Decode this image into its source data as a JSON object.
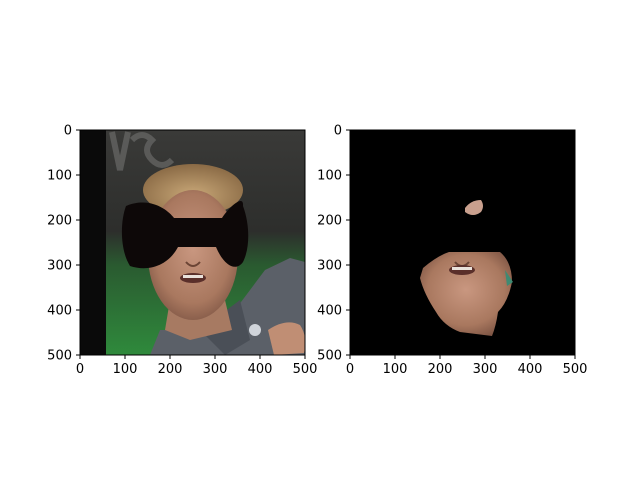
{
  "chart_data": [
    {
      "type": "image",
      "title": "",
      "xlabel": "",
      "ylabel": "",
      "xlim": [
        0,
        500
      ],
      "ylim": [
        500,
        0
      ],
      "xticks": [
        0,
        100,
        200,
        300,
        400,
        500
      ],
      "yticks": [
        0,
        100,
        200,
        300,
        400,
        500
      ],
      "xtick_labels": [
        "0",
        "100",
        "200",
        "300",
        "400",
        "500"
      ],
      "ytick_labels": [
        "0",
        "100",
        "200",
        "300",
        "400",
        "500"
      ],
      "grid": false,
      "content": "photo of man's face with black bow-shaped occlusion over eyes",
      "colors": {
        "occlusion": "#0d0808",
        "background_left": "#0a0a0a",
        "field": "#2f8a3c"
      }
    },
    {
      "type": "image",
      "title": "",
      "xlabel": "",
      "ylabel": "",
      "xlim": [
        0,
        500
      ],
      "ylim": [
        500,
        0
      ],
      "xticks": [
        0,
        100,
        200,
        300,
        400,
        500
      ],
      "yticks": [
        0,
        100,
        200,
        300,
        400,
        500
      ],
      "xtick_labels": [
        "0",
        "100",
        "200",
        "300",
        "400",
        "500"
      ],
      "ytick_labels": [
        "0",
        "100",
        "200",
        "300",
        "400",
        "500"
      ],
      "grid": false,
      "content": "segmented face region on black background",
      "colors": {
        "background": "#000000"
      }
    }
  ]
}
